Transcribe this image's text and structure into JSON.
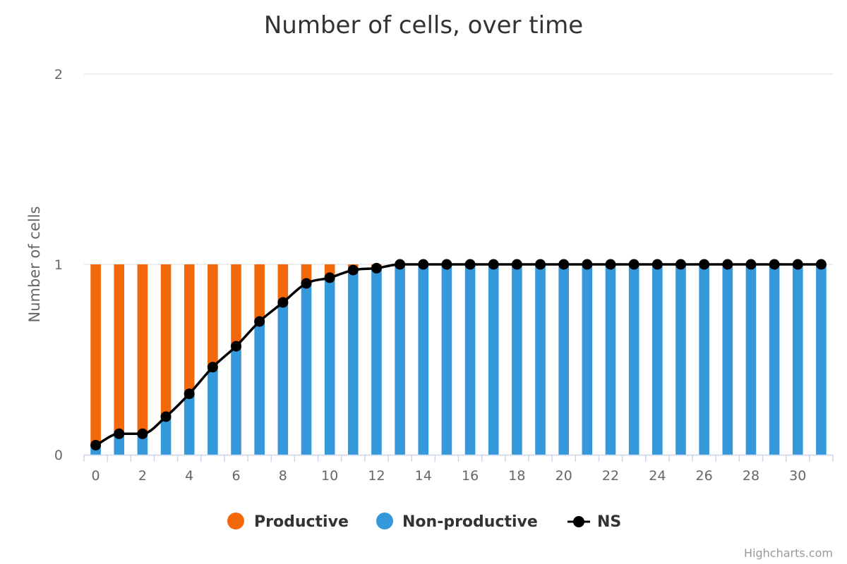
{
  "chart_data": {
    "type": "bar",
    "title": "Number of cells, over time",
    "ylabel": "Number of cells",
    "xlabel": "",
    "xlim": [
      -0.5,
      31.5
    ],
    "ylim": [
      0,
      2
    ],
    "yticks": [
      0,
      1,
      2
    ],
    "xticks": [
      0,
      2,
      4,
      6,
      8,
      10,
      12,
      14,
      16,
      18,
      20,
      22,
      24,
      26,
      28,
      30
    ],
    "stacked": true,
    "grid": true,
    "legend_position": "bottom-center",
    "x": [
      0,
      1,
      2,
      3,
      4,
      5,
      6,
      7,
      8,
      9,
      10,
      11,
      12,
      13,
      14,
      15,
      16,
      17,
      18,
      19,
      20,
      21,
      22,
      23,
      24,
      25,
      26,
      27,
      28,
      29,
      30,
      31
    ],
    "series": [
      {
        "name": "Productive",
        "type": "column",
        "color": "#f3680b",
        "values": [
          0.96,
          0.9,
          0.9,
          0.8,
          0.69,
          0.55,
          0.43,
          0.3,
          0.2,
          0.1,
          0.07,
          0.03,
          0.02,
          0,
          0,
          0,
          0,
          0,
          0,
          0,
          0,
          0,
          0,
          0,
          0,
          0,
          0,
          0,
          0,
          0,
          0,
          0
        ]
      },
      {
        "name": "Non-productive",
        "type": "column",
        "color": "#3498db",
        "values": [
          0.04,
          0.1,
          0.1,
          0.2,
          0.31,
          0.45,
          0.57,
          0.7,
          0.8,
          0.9,
          0.93,
          0.97,
          0.98,
          1,
          1,
          1,
          1,
          1,
          1,
          1,
          1,
          1,
          1,
          1,
          1,
          1,
          1,
          1,
          1,
          1,
          1,
          1
        ]
      },
      {
        "name": "NS",
        "type": "spline",
        "color": "#000000",
        "values": [
          0.05,
          0.11,
          0.11,
          0.2,
          0.32,
          0.46,
          0.57,
          0.7,
          0.8,
          0.9,
          0.93,
          0.97,
          0.98,
          1,
          1,
          1,
          1,
          1,
          1,
          1,
          1,
          1,
          1,
          1,
          1,
          1,
          1,
          1,
          1,
          1,
          1,
          1
        ]
      }
    ]
  },
  "credits": "Highcharts.com"
}
